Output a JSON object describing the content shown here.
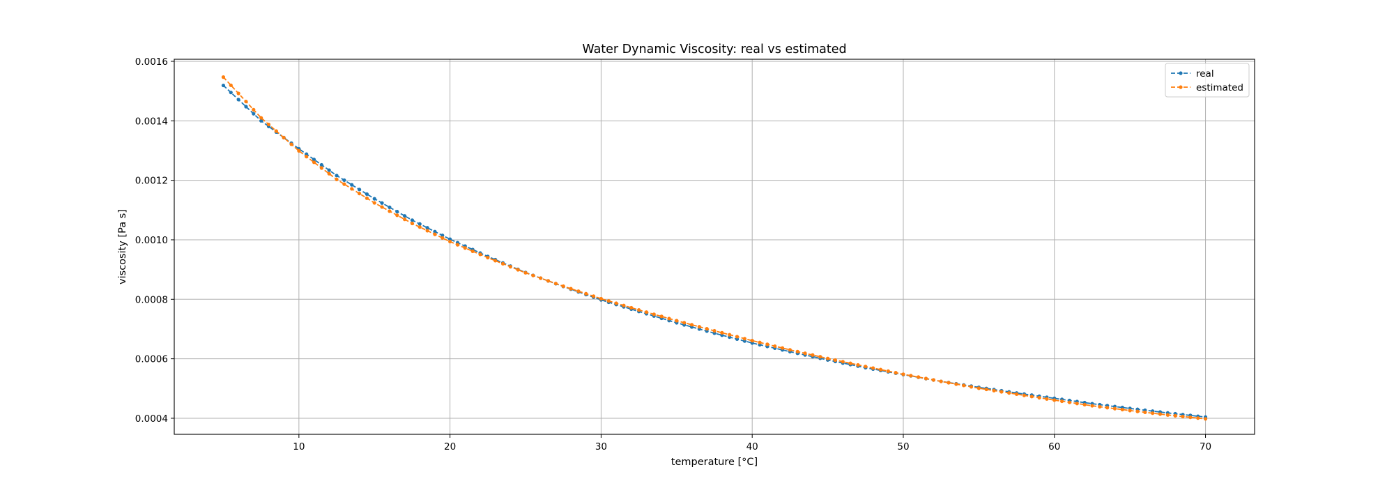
{
  "chart_data": {
    "type": "line",
    "title": "Water Dynamic Viscosity: real vs estimated",
    "xlabel": "temperature [°C]",
    "ylabel": "viscosity [Pa s]",
    "xlim": [
      1.75,
      73.25
    ],
    "ylim": [
      0.000346,
      0.001607
    ],
    "xticks": [
      10,
      20,
      30,
      40,
      50,
      60,
      70
    ],
    "xtick_labels": [
      "10",
      "20",
      "30",
      "40",
      "50",
      "60",
      "70"
    ],
    "yticks": [
      0.0004,
      0.0006,
      0.0008,
      0.001,
      0.0012,
      0.0014,
      0.0016
    ],
    "ytick_labels": [
      "0.0004",
      "0.0006",
      "0.0008",
      "0.0010",
      "0.0012",
      "0.0014",
      "0.0016"
    ],
    "grid": true,
    "legend_position": "top-right",
    "line_style": "dashed with dot markers",
    "x": [
      5,
      7.5,
      10,
      12.5,
      15,
      17.5,
      20,
      22.5,
      25,
      27.5,
      30,
      32.5,
      35,
      37.5,
      40,
      42.5,
      45,
      47.5,
      50,
      52.5,
      55,
      57.5,
      60,
      62.5,
      65,
      67.5,
      70
    ],
    "series": [
      {
        "name": "real",
        "color": "#1f77b4",
        "values": [
          0.001519,
          0.0014,
          0.001306,
          0.001216,
          0.001138,
          0.001066,
          0.001002,
          0.000944,
          0.00089,
          0.000843,
          0.000798,
          0.000759,
          0.000721,
          0.000686,
          0.000653,
          0.000624,
          0.000596,
          0.00057,
          0.000547,
          0.000524,
          0.000504,
          0.000485,
          0.000467,
          0.000449,
          0.000433,
          0.000418,
          0.000404
        ]
      },
      {
        "name": "estimated",
        "color": "#ff7f0e",
        "values": [
          0.001547,
          0.00141,
          0.001299,
          0.001203,
          0.001124,
          0.001055,
          0.000994,
          0.00094,
          0.000889,
          0.000844,
          0.000802,
          0.000764,
          0.000728,
          0.000694,
          0.000661,
          0.00063,
          0.000601,
          0.000574,
          0.000548,
          0.000524,
          0.000501,
          0.000481,
          0.000461,
          0.000442,
          0.000426,
          0.000411,
          0.000398
        ]
      }
    ]
  }
}
